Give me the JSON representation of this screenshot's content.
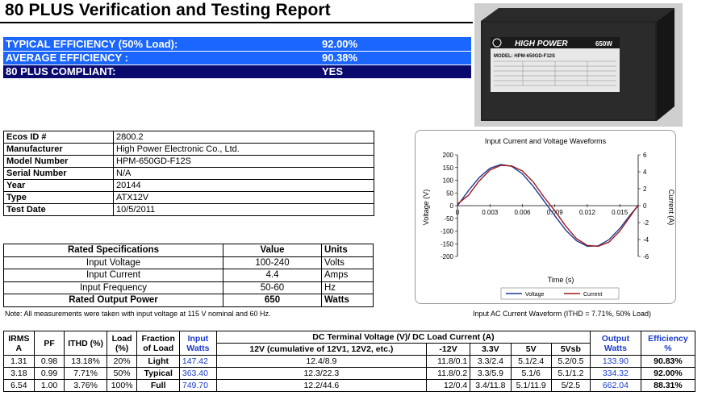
{
  "title": "80 PLUS Verification and Testing Report",
  "efficiency": [
    {
      "label": "TYPICAL EFFICIENCY (50% Load):",
      "value": "92.00%"
    },
    {
      "label": "AVERAGE EFFICIENCY :",
      "value": "90.38%"
    },
    {
      "label": "80 PLUS COMPLIANT:",
      "value": "YES"
    }
  ],
  "photo": {
    "brand": "HIGH POWER",
    "watt_label": "650W",
    "model_label": "MODEL: HPM-650GD-F12S"
  },
  "info": [
    {
      "key": "Ecos ID #",
      "value": "2800.2"
    },
    {
      "key": "Manufacturer",
      "value": "High Power Electronic Co., Ltd."
    },
    {
      "key": "Model Number",
      "value": "HPM-650GD-F12S"
    },
    {
      "key": "Serial Number",
      "value": "N/A"
    },
    {
      "key": "Year",
      "value": "20144"
    },
    {
      "key": "Type",
      "value": "ATX12V"
    },
    {
      "key": "Test Date",
      "value": "10/5/2011"
    }
  ],
  "specs": {
    "headers": [
      "Rated Specifications",
      "Value",
      "Units"
    ],
    "rows": [
      [
        "Input Voltage",
        "100-240",
        "Volts"
      ],
      [
        "Input Current",
        "4.4",
        "Amps"
      ],
      [
        "Input Frequency",
        "50-60",
        "Hz"
      ],
      [
        "Rated Output Power",
        "650",
        "Watts"
      ]
    ]
  },
  "note": "Note: All measurements were taken with input voltage at 115 V nominal and 60 Hz.",
  "chart_caption": "Input AC Current Waveform (ITHD = 7.71%, 50% Load)",
  "chart_data": {
    "type": "line",
    "title": "Input Current and Voltage Waveforms",
    "xlabel": "Time (s)",
    "ylabel": "Voltage (V)",
    "y2label": "Current (A)",
    "xlim": [
      0,
      0.0167
    ],
    "ylim": [
      -200,
      200
    ],
    "y2lim": [
      -6,
      6
    ],
    "xticks": [
      "0",
      "0.003",
      "0.006",
      "0.009",
      "0.012",
      "0.015"
    ],
    "yticks": [
      "200",
      "150",
      "100",
      "50",
      "0",
      "-50",
      "-100",
      "-150",
      "-200"
    ],
    "y2ticks": [
      "6",
      "4",
      "2",
      "0",
      "-2",
      "-4",
      "-6"
    ],
    "legend_position": "bottom",
    "series": [
      {
        "name": "Voltage",
        "color": "#1f3a93",
        "axis": "left",
        "x": [
          0,
          0.001,
          0.002,
          0.003,
          0.004,
          0.005,
          0.006,
          0.007,
          0.008,
          0.009,
          0.01,
          0.011,
          0.012,
          0.013,
          0.014,
          0.015,
          0.016,
          0.0167
        ],
        "y": [
          0,
          58,
          110,
          147,
          162,
          155,
          125,
          76,
          18,
          -40,
          -96,
          -138,
          -160,
          -158,
          -134,
          -90,
          -35,
          0
        ]
      },
      {
        "name": "Current",
        "color": "#a01818",
        "axis": "right",
        "x": [
          0,
          0.001,
          0.002,
          0.003,
          0.004,
          0.005,
          0.006,
          0.007,
          0.008,
          0.009,
          0.01,
          0.011,
          0.012,
          0.013,
          0.014,
          0.015,
          0.016,
          0.0167
        ],
        "y": [
          0.2,
          1.2,
          2.9,
          4.2,
          4.75,
          4.7,
          4.1,
          2.8,
          1.0,
          -0.6,
          -2.4,
          -3.9,
          -4.7,
          -4.8,
          -4.3,
          -3.0,
          -1.2,
          0.1
        ]
      }
    ]
  },
  "results": {
    "headers": {
      "irms": "IRMS",
      "irms_unit": "A",
      "pf": "PF",
      "ithd": "ITHD (%)",
      "load": "Load",
      "load_unit": "(%)",
      "fraction": "Fraction",
      "fraction2": "of Load",
      "input": "Input",
      "input2": "Watts",
      "dc": "DC Terminal Voltage (V)/ DC Load Current (A)",
      "v12": "12V (cumulative of 12V1, 12V2, etc.)",
      "vm12": "-12V",
      "v33": "3.3V",
      "v5": "5V",
      "v5sb": "5Vsb",
      "output": "Output",
      "output2": "Watts",
      "eff": "Efficiency",
      "eff2": "%"
    },
    "rows": [
      [
        "1.31",
        "0.98",
        "13.18%",
        "20%",
        "Light",
        "147.42",
        "12.4/8.9",
        "11.8/0.1",
        "3.3/2.4",
        "5.1/2.4",
        "5.2/0.5",
        "133.90",
        "90.83%"
      ],
      [
        "3.18",
        "0.99",
        "7.71%",
        "50%",
        "Typical",
        "363.40",
        "12.3/22.3",
        "11.8/0.2",
        "3.3/5.9",
        "5.1/6",
        "5.1/1.2",
        "334.32",
        "92.00%"
      ],
      [
        "6.54",
        "1.00",
        "3.76%",
        "100%",
        "Full",
        "749.70",
        "12.2/44.6",
        "12/0.4",
        "3.4/11.8",
        "5.1/11.9",
        "5/2.5",
        "662.04",
        "88.31%"
      ]
    ]
  }
}
